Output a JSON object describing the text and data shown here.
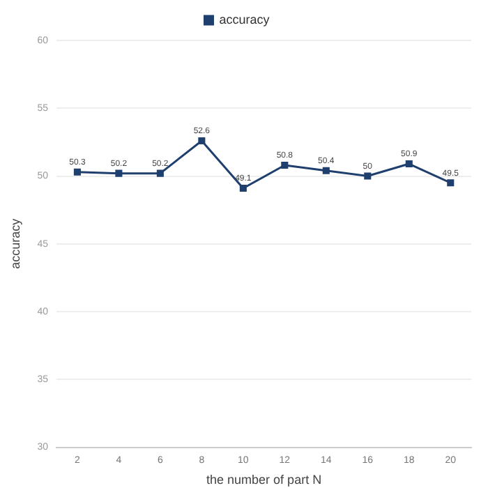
{
  "chart_data": {
    "type": "line",
    "xlabel": "the number of part N",
    "ylabel": "accuracy",
    "categories": [
      "2",
      "4",
      "6",
      "8",
      "10",
      "12",
      "14",
      "16",
      "18",
      "20"
    ],
    "series": [
      {
        "name": "accuracy",
        "color": "#1f3f6e",
        "values": [
          50.3,
          50.2,
          50.2,
          52.6,
          49.1,
          50.8,
          50.4,
          50,
          50.9,
          49.5
        ]
      }
    ],
    "ylim": [
      30,
      60
    ],
    "yticks": [
      30,
      35,
      40,
      45,
      50,
      55,
      60
    ],
    "grid": "y",
    "legend": "top",
    "marker": "square",
    "line_style": "solid",
    "data_labels": true
  }
}
